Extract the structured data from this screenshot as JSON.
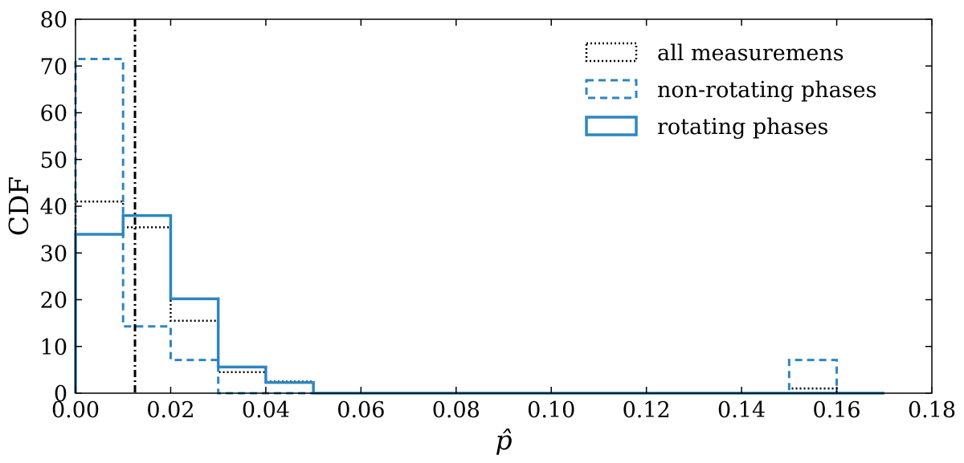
{
  "chart_data": {
    "type": "histogram",
    "xlabel": "p̂",
    "ylabel": "CDF",
    "xlim": [
      0.0,
      0.18
    ],
    "ylim": [
      0,
      80
    ],
    "xticks": [
      "0.00",
      "0.02",
      "0.04",
      "0.06",
      "0.08",
      "0.10",
      "0.12",
      "0.14",
      "0.16",
      "0.18"
    ],
    "yticks": [
      "0",
      "10",
      "20",
      "30",
      "40",
      "50",
      "60",
      "70",
      "80"
    ],
    "vertical_line": {
      "x": 0.0125,
      "style": "dash-dot",
      "color": "#000000"
    },
    "legend_position": "upper right",
    "series": [
      {
        "name": "all measuremens",
        "style": "dotted",
        "color": "#000000",
        "bins": [
          [
            0.0,
            0.01,
            41
          ],
          [
            0.01,
            0.02,
            35.5
          ],
          [
            0.02,
            0.03,
            15.5
          ],
          [
            0.03,
            0.04,
            4.5
          ],
          [
            0.04,
            0.05,
            2.5
          ],
          [
            0.05,
            0.15,
            0
          ],
          [
            0.15,
            0.16,
            1
          ],
          [
            0.16,
            0.17,
            0
          ]
        ]
      },
      {
        "name": "non-rotating phases",
        "style": "dashed",
        "color": "#2e86c1",
        "bins": [
          [
            0.0,
            0.01,
            71.5
          ],
          [
            0.01,
            0.02,
            14.3
          ],
          [
            0.02,
            0.03,
            7.1
          ],
          [
            0.03,
            0.15,
            0
          ],
          [
            0.15,
            0.16,
            7.1
          ],
          [
            0.16,
            0.17,
            0
          ]
        ]
      },
      {
        "name": "rotating phases",
        "style": "solid",
        "color": "#2e86c1",
        "bins": [
          [
            0.0,
            0.01,
            34
          ],
          [
            0.01,
            0.02,
            38
          ],
          [
            0.02,
            0.03,
            20.2
          ],
          [
            0.03,
            0.04,
            5.6
          ],
          [
            0.04,
            0.05,
            2.3
          ],
          [
            0.05,
            0.17,
            0
          ]
        ]
      }
    ]
  }
}
